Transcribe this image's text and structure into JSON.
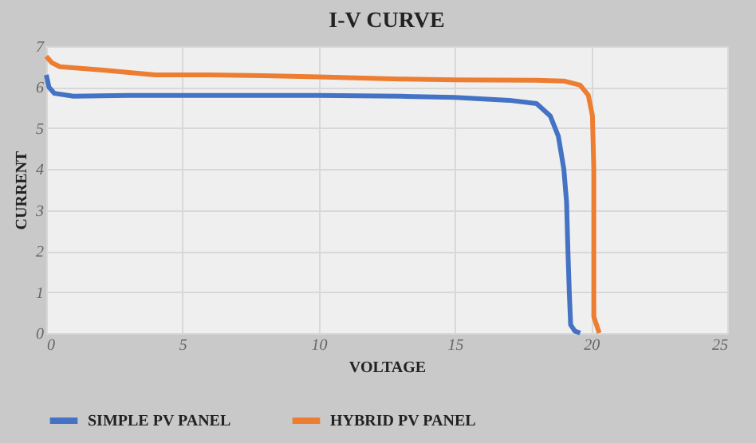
{
  "chart_data": {
    "type": "line",
    "title": "I-V CURVE",
    "xlabel": "VOLTAGE",
    "ylabel": "CURRENT",
    "xlim": [
      0,
      25
    ],
    "xticks": [
      0,
      5,
      10,
      15,
      20,
      25
    ],
    "ylim": [
      0,
      7
    ],
    "yticks": [
      0,
      1,
      2,
      3,
      4,
      5,
      6,
      7
    ],
    "grid": true,
    "legend": "bottom",
    "line_style": "solid",
    "marker": "none",
    "series": [
      {
        "name": "SIMPLE PV PANEL",
        "color": "#4472c4",
        "x": [
          0,
          0.1,
          0.3,
          1,
          3,
          5,
          10,
          13,
          15,
          17,
          18,
          18.5,
          18.8,
          19,
          19.1,
          19.15,
          19.2,
          19.25,
          19.4,
          19.6
        ],
        "values": [
          6.3,
          6.0,
          5.85,
          5.78,
          5.8,
          5.8,
          5.8,
          5.78,
          5.75,
          5.68,
          5.6,
          5.3,
          4.8,
          4.0,
          3.2,
          2,
          1,
          0.2,
          0.05,
          0
        ]
      },
      {
        "name": "HYBRID PV PANEL",
        "color": "#ed7d31",
        "x": [
          0,
          0.2,
          0.5,
          2,
          4,
          6,
          8,
          10,
          13,
          15,
          18,
          19,
          19.6,
          19.9,
          20.05,
          20.1,
          20.1,
          20.1,
          20.2,
          20.3
        ],
        "values": [
          6.75,
          6.6,
          6.5,
          6.42,
          6.3,
          6.3,
          6.28,
          6.25,
          6.2,
          6.18,
          6.17,
          6.15,
          6.05,
          5.8,
          5.3,
          4,
          2,
          0.4,
          0.2,
          0
        ]
      }
    ]
  }
}
